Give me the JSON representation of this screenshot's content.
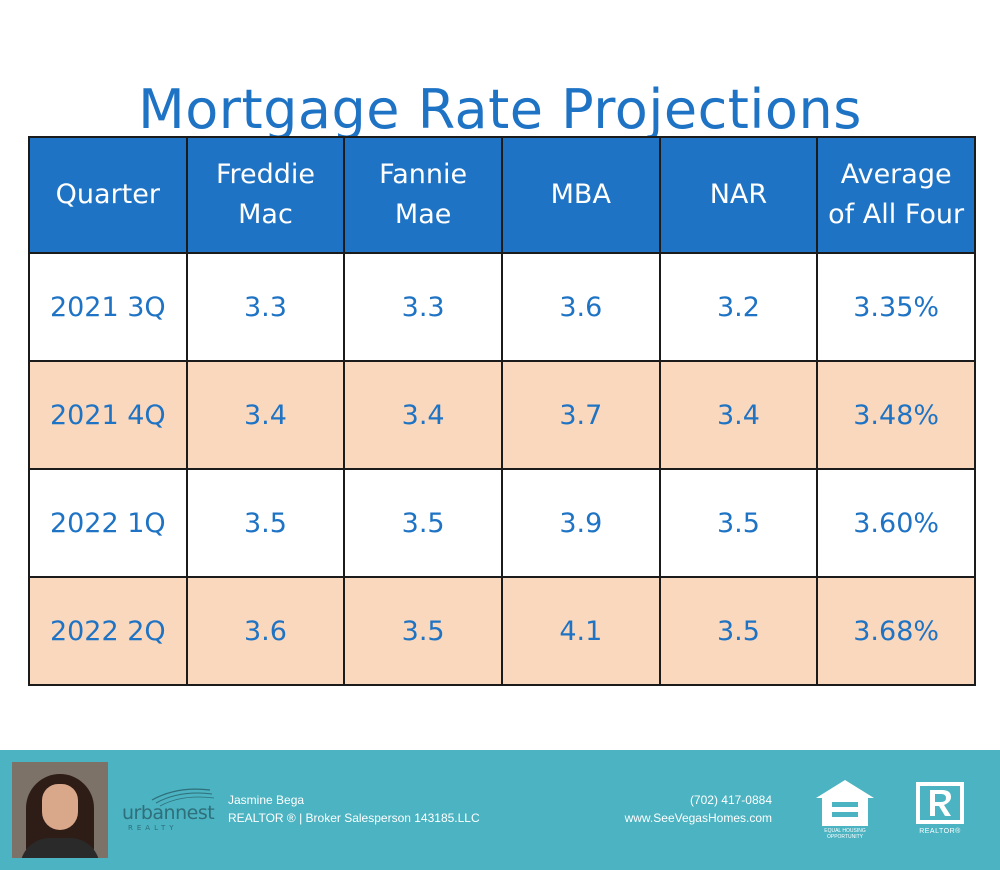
{
  "title": "Mortgage Rate Projections",
  "table": {
    "headers": [
      [
        "Quarter"
      ],
      [
        "Freddie",
        "Mac"
      ],
      [
        "Fannie",
        "Mae"
      ],
      [
        "MBA"
      ],
      [
        "NAR"
      ],
      [
        "Average",
        "of All Four"
      ]
    ],
    "rows": [
      [
        "2021 3Q",
        "3.3",
        "3.3",
        "3.6",
        "3.2",
        "3.35%"
      ],
      [
        "2021 4Q",
        "3.4",
        "3.4",
        "3.7",
        "3.4",
        "3.48%"
      ],
      [
        "2022 1Q",
        "3.5",
        "3.5",
        "3.9",
        "3.5",
        "3.60%"
      ],
      [
        "2022 2Q",
        "3.6",
        "3.5",
        "4.1",
        "3.5",
        "3.68%"
      ]
    ]
  },
  "footer": {
    "logo": {
      "text": "urbannest",
      "sub": "REALTY"
    },
    "agent_name": "Jasmine Bega",
    "agent_title": "REALTOR ® | Broker Salesperson 143185.LLC",
    "phone": "(702) 417-0884",
    "website": "www.SeeVegasHomes.com",
    "eho_label": "EQUAL HOUSING OPPORTUNITY",
    "realtor_label": "REALTOR®"
  },
  "colors": {
    "title": "#1f73c4",
    "header_bg": "#1f73c4",
    "alt_row": "#fad8bd",
    "footer_bg": "#4bb3c1"
  }
}
